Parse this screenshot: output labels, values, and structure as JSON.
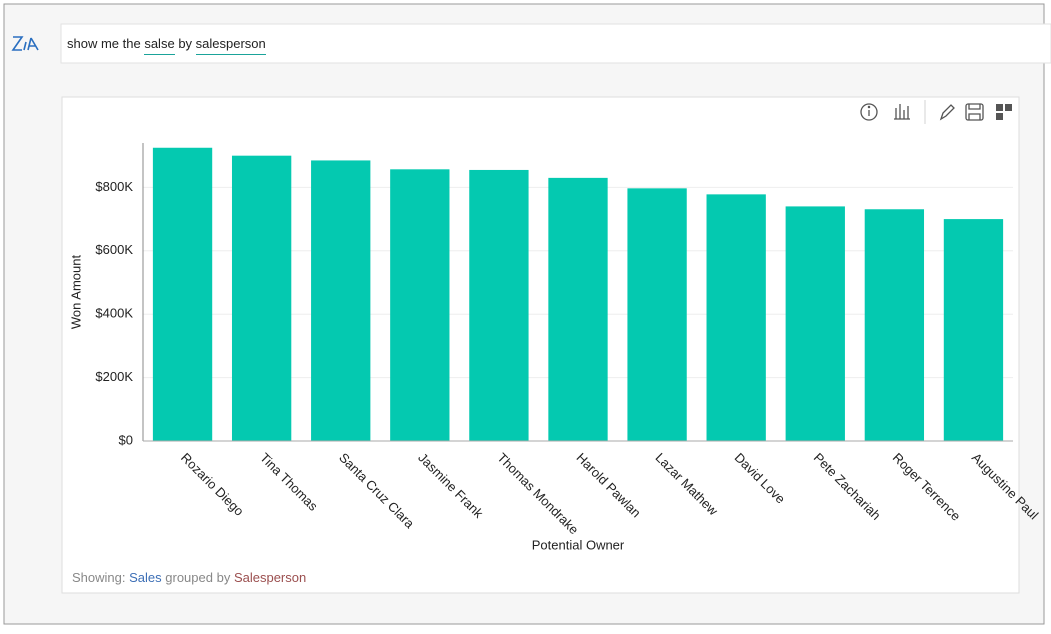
{
  "search": {
    "parts": [
      "show me the",
      "salse",
      "by",
      "salesperson"
    ]
  },
  "chart_data": {
    "type": "bar",
    "x_label": "Potential Owner",
    "y_label": "Won Amount",
    "categories": [
      "Rozario Diego",
      "Tina Thomas",
      "Santa Cruz Clara",
      "Jasmine Frank",
      "Thomas Mondrake",
      "Harold Pawlan",
      "Lazar Mathew",
      "David Love",
      "Pete Zachariah",
      "Roger Terrence",
      "Augustine Paul"
    ],
    "values": [
      925000,
      900000,
      885000,
      857000,
      855000,
      830000,
      797000,
      778000,
      740000,
      731000,
      700000
    ],
    "color": "#04c9b0",
    "ylim": [
      0,
      940000
    ],
    "yticks": [
      {
        "value": 0,
        "label": "$0"
      },
      {
        "value": 200000,
        "label": "$200K"
      },
      {
        "value": 400000,
        "label": "$400K"
      },
      {
        "value": 600000,
        "label": "$600K"
      },
      {
        "value": 800000,
        "label": "$800K"
      }
    ],
    "grid": true
  },
  "footer": {
    "parts": [
      "Showing:",
      "Sales",
      "grouped by",
      "Salesperson"
    ]
  }
}
